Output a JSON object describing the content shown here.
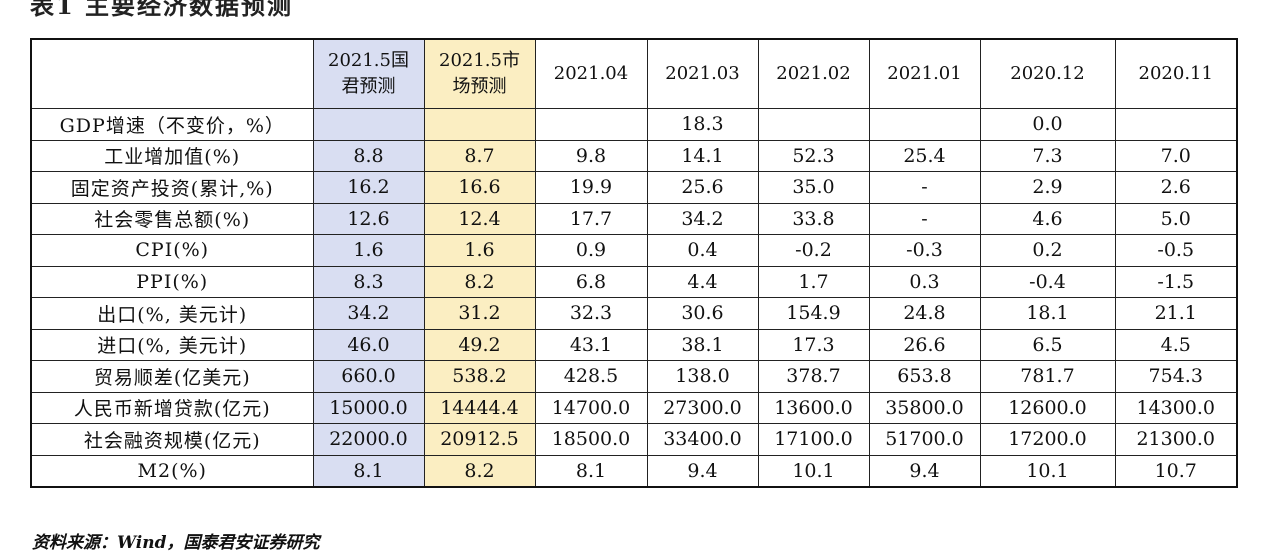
{
  "title": "表1 主要经济数据预测",
  "source": "资料来源：Wind，国泰君安证券研究",
  "table": {
    "headers": [
      {
        "line1": "2021.5国",
        "line2": "君预测"
      },
      {
        "line1": "2021.5市",
        "line2": "场预测"
      },
      {
        "line1": "2021.04",
        "line2": ""
      },
      {
        "line1": "2021.03",
        "line2": ""
      },
      {
        "line1": "2021.02",
        "line2": ""
      },
      {
        "line1": "2021.01",
        "line2": ""
      },
      {
        "line1": "2020.12",
        "line2": ""
      },
      {
        "line1": "2020.11",
        "line2": ""
      }
    ],
    "rows": [
      {
        "label": "GDP增速（不变价，%）",
        "values": [
          "",
          "",
          "",
          "18.3",
          "",
          "",
          "0.0",
          ""
        ]
      },
      {
        "label": "工业增加值(%)",
        "values": [
          "8.8",
          "8.7",
          "9.8",
          "14.1",
          "52.3",
          "25.4",
          "7.3",
          "7.0"
        ]
      },
      {
        "label": "固定资产投资(累计,%)",
        "values": [
          "16.2",
          "16.6",
          "19.9",
          "25.6",
          "35.0",
          "-",
          "2.9",
          "2.6"
        ]
      },
      {
        "label": "社会零售总额(%)",
        "values": [
          "12.6",
          "12.4",
          "17.7",
          "34.2",
          "33.8",
          "-",
          "4.6",
          "5.0"
        ]
      },
      {
        "label": "CPI(%)",
        "values": [
          "1.6",
          "1.6",
          "0.9",
          "0.4",
          "-0.2",
          "-0.3",
          "0.2",
          "-0.5"
        ]
      },
      {
        "label": "PPI(%)",
        "values": [
          "8.3",
          "8.2",
          "6.8",
          "4.4",
          "1.7",
          "0.3",
          "-0.4",
          "-1.5"
        ]
      },
      {
        "label": "出口(%, 美元计)",
        "values": [
          "34.2",
          "31.2",
          "32.3",
          "30.6",
          "154.9",
          "24.8",
          "18.1",
          "21.1"
        ]
      },
      {
        "label": "进口(%, 美元计)",
        "values": [
          "46.0",
          "49.2",
          "43.1",
          "38.1",
          "17.3",
          "26.6",
          "6.5",
          "4.5"
        ]
      },
      {
        "label": "贸易顺差(亿美元)",
        "values": [
          "660.0",
          "538.2",
          "428.5",
          "138.0",
          "378.7",
          "653.8",
          "781.7",
          "754.3"
        ]
      },
      {
        "label": "人民币新增贷款(亿元)",
        "values": [
          "15000.0",
          "14444.4",
          "14700.0",
          "27300.0",
          "13600.0",
          "35800.0",
          "12600.0",
          "14300.0"
        ]
      },
      {
        "label": "社会融资规模(亿元)",
        "values": [
          "22000.0",
          "20912.5",
          "18500.0",
          "33400.0",
          "17100.0",
          "51700.0",
          "17200.0",
          "21300.0"
        ]
      },
      {
        "label": "M2(%)",
        "values": [
          "8.1",
          "8.2",
          "8.1",
          "9.4",
          "10.1",
          "9.4",
          "10.1",
          "10.7"
        ]
      }
    ]
  }
}
